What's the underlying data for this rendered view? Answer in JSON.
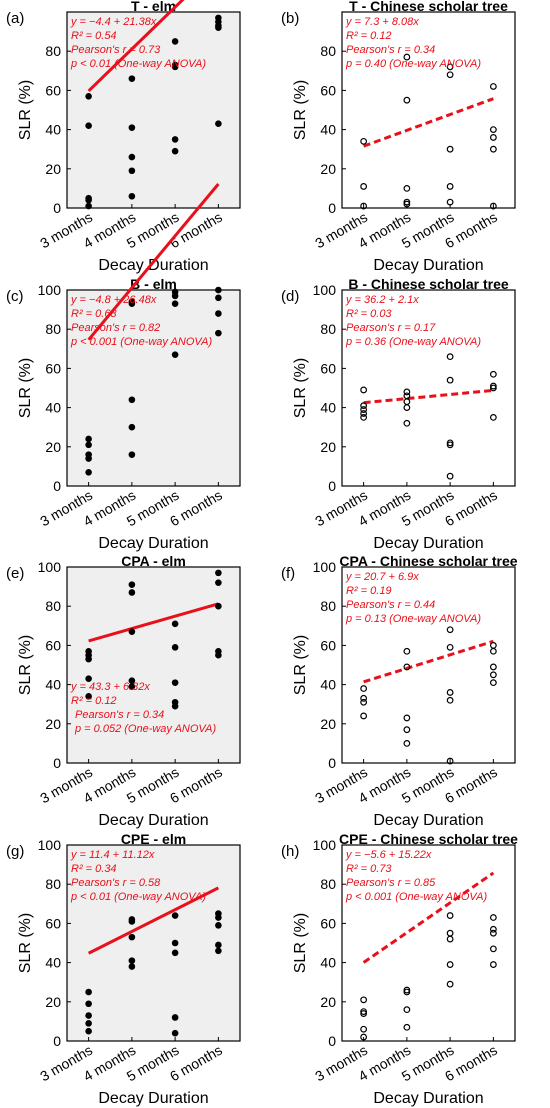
{
  "chart_data": [
    {
      "panel_label": "(a)",
      "title": "T - elm",
      "type": "scatter",
      "x_categories": [
        "3 months",
        "4 months",
        "5 months",
        "6 months"
      ],
      "xlabel": "Decay Duration",
      "ylabel": "SLR (%)",
      "ylim": [
        0,
        100
      ],
      "yticks": [
        0,
        20,
        40,
        60,
        80
      ],
      "background": "#efefef",
      "marker": "filled",
      "fit_style": "solid",
      "fit_color": "#e8101a",
      "points": [
        [
          3,
          57
        ],
        [
          3,
          42
        ],
        [
          3,
          5
        ],
        [
          3,
          4
        ],
        [
          3,
          1
        ],
        [
          4,
          66
        ],
        [
          4,
          41
        ],
        [
          4,
          26
        ],
        [
          4,
          19
        ],
        [
          4,
          6
        ],
        [
          5,
          85
        ],
        [
          5,
          73
        ],
        [
          5,
          72
        ],
        [
          5,
          35
        ],
        [
          5,
          29
        ],
        [
          6,
          97
        ],
        [
          6,
          95
        ],
        [
          6,
          93
        ],
        [
          6,
          92
        ],
        [
          6,
          43
        ]
      ],
      "fit": {
        "intercept": -4.4,
        "slope": 21.38
      },
      "annotation": [
        "y = −4.4 + 21.38x",
        "R² = 0.54",
        "Pearson's r = 0.73",
        "p < 0.01 (One-way ANOVA)"
      ],
      "annotation_position": "top-left"
    },
    {
      "panel_label": "(b)",
      "title": "T - Chinese scholar tree",
      "type": "scatter",
      "x_categories": [
        "3 months",
        "4 months",
        "5 months",
        "6 months"
      ],
      "xlabel": "Decay Duration",
      "ylabel": "SLR (%)",
      "ylim": [
        0,
        100
      ],
      "yticks": [
        0,
        20,
        40,
        60,
        80
      ],
      "background": "#ffffff",
      "marker": "open",
      "fit_style": "dashed",
      "fit_color": "#e8101a",
      "points": [
        [
          3,
          34
        ],
        [
          3,
          11
        ],
        [
          3,
          1
        ],
        [
          4,
          77
        ],
        [
          4,
          55
        ],
        [
          4,
          10
        ],
        [
          4,
          3
        ],
        [
          4,
          2
        ],
        [
          5,
          72
        ],
        [
          5,
          68
        ],
        [
          5,
          30
        ],
        [
          5,
          11
        ],
        [
          5,
          3
        ],
        [
          6,
          62
        ],
        [
          6,
          40
        ],
        [
          6,
          36
        ],
        [
          6,
          30
        ],
        [
          6,
          1
        ]
      ],
      "fit": {
        "intercept": 7.3,
        "slope": 8.08
      },
      "annotation": [
        "y = 7.3 + 8.08x",
        "R² = 0.12",
        "Pearson's r = 0.34",
        "p = 0.40 (One-way ANOVA)"
      ],
      "annotation_position": "top-left"
    },
    {
      "panel_label": "(c)",
      "title": "B - elm",
      "type": "scatter",
      "x_categories": [
        "3 months",
        "4 months",
        "5 months",
        "6 months"
      ],
      "xlabel": "Decay Duration",
      "ylabel": "SLR (%)",
      "ylim": [
        0,
        100
      ],
      "yticks": [
        0,
        20,
        40,
        60,
        80,
        100
      ],
      "background": "#efefef",
      "marker": "filled",
      "fit_style": "solid",
      "fit_color": "#e8101a",
      "points": [
        [
          3,
          24
        ],
        [
          3,
          21
        ],
        [
          3,
          16
        ],
        [
          3,
          14
        ],
        [
          3,
          7
        ],
        [
          4,
          94
        ],
        [
          4,
          93
        ],
        [
          4,
          44
        ],
        [
          4,
          30
        ],
        [
          4,
          16
        ],
        [
          5,
          99
        ],
        [
          5,
          97
        ],
        [
          5,
          93
        ],
        [
          5,
          67
        ],
        [
          6,
          100
        ],
        [
          6,
          96
        ],
        [
          6,
          88
        ],
        [
          6,
          78
        ]
      ],
      "fit": {
        "intercept": -4.8,
        "slope": 26.48
      },
      "annotation": [
        "y = −4.8 + 26.48x",
        "R² = 0.68",
        "Pearson's r = 0.82",
        "p < 0.001 (One-way ANOVA)"
      ],
      "annotation_position": "top-left"
    },
    {
      "panel_label": "(d)",
      "title": "B - Chinese scholar tree",
      "type": "scatter",
      "x_categories": [
        "3 months",
        "4 months",
        "5 months",
        "6 months"
      ],
      "xlabel": "Decay Duration",
      "ylabel": "SLR (%)",
      "ylim": [
        0,
        100
      ],
      "yticks": [
        0,
        20,
        40,
        60,
        80,
        100
      ],
      "background": "#ffffff",
      "marker": "open",
      "fit_style": "dashed",
      "fit_color": "#e8101a",
      "points": [
        [
          3,
          49
        ],
        [
          3,
          41
        ],
        [
          3,
          39
        ],
        [
          3,
          37
        ],
        [
          3,
          35
        ],
        [
          4,
          48
        ],
        [
          4,
          46
        ],
        [
          4,
          43
        ],
        [
          4,
          40
        ],
        [
          4,
          32
        ],
        [
          5,
          66
        ],
        [
          5,
          54
        ],
        [
          5,
          22
        ],
        [
          5,
          21
        ],
        [
          5,
          5
        ],
        [
          6,
          57
        ],
        [
          6,
          51
        ],
        [
          6,
          50
        ],
        [
          6,
          35
        ]
      ],
      "fit": {
        "intercept": 36.2,
        "slope": 2.1
      },
      "annotation": [
        "y = 36.2 + 2.1x",
        "R² = 0.03",
        "Pearson's r = 0.17",
        "p = 0.36 (One-way ANOVA)"
      ],
      "annotation_position": "top-left"
    },
    {
      "panel_label": "(e)",
      "title": "CPA - elm",
      "type": "scatter",
      "x_categories": [
        "3 months",
        "4 months",
        "5 months",
        "6 months"
      ],
      "xlabel": "Decay Duration",
      "ylabel": "SLR (%)",
      "ylim": [
        0,
        100
      ],
      "yticks": [
        0,
        20,
        40,
        60,
        80,
        100
      ],
      "background": "#efefef",
      "marker": "filled",
      "fit_style": "solid",
      "fit_color": "#e8101a",
      "points": [
        [
          3,
          57
        ],
        [
          3,
          55
        ],
        [
          3,
          53
        ],
        [
          3,
          43
        ],
        [
          3,
          34
        ],
        [
          4,
          91
        ],
        [
          4,
          87
        ],
        [
          4,
          67
        ],
        [
          4,
          42
        ],
        [
          4,
          39
        ],
        [
          5,
          71
        ],
        [
          5,
          59
        ],
        [
          5,
          41
        ],
        [
          5,
          31
        ],
        [
          5,
          29
        ],
        [
          6,
          97
        ],
        [
          6,
          92
        ],
        [
          6,
          80
        ],
        [
          6,
          57
        ],
        [
          6,
          55
        ]
      ],
      "fit": {
        "intercept": 43.3,
        "slope": 6.32
      },
      "annotation": [
        "y = 43.3 + 6.32x",
        "R² = 0.12",
        "Pearson's r = 0.34",
        "p = 0.052 (One-way ANOVA)"
      ],
      "annotation_position": "bottom-left"
    },
    {
      "panel_label": "(f)",
      "title": "CPA - Chinese scholar tree",
      "type": "scatter",
      "x_categories": [
        "3 months",
        "4 months",
        "5 months",
        "6 months"
      ],
      "xlabel": "Decay Duration",
      "ylabel": "SLR (%)",
      "ylim": [
        0,
        100
      ],
      "yticks": [
        0,
        20,
        40,
        60,
        80,
        100
      ],
      "background": "#ffffff",
      "marker": "open",
      "fit_style": "dashed",
      "fit_color": "#e8101a",
      "points": [
        [
          3,
          38
        ],
        [
          3,
          33
        ],
        [
          3,
          31
        ],
        [
          3,
          24
        ],
        [
          4,
          57
        ],
        [
          4,
          49
        ],
        [
          4,
          23
        ],
        [
          4,
          17
        ],
        [
          4,
          10
        ],
        [
          5,
          68
        ],
        [
          5,
          59
        ],
        [
          5,
          36
        ],
        [
          5,
          32
        ],
        [
          5,
          1
        ],
        [
          6,
          60
        ],
        [
          6,
          57
        ],
        [
          6,
          49
        ],
        [
          6,
          45
        ],
        [
          6,
          41
        ]
      ],
      "fit": {
        "intercept": 20.7,
        "slope": 6.9
      },
      "annotation": [
        "y = 20.7 + 6.9x",
        "R² = 0.19",
        "Pearson's r = 0.44",
        "p = 0.13 (One-way ANOVA)"
      ],
      "annotation_position": "top-left"
    },
    {
      "panel_label": "(g)",
      "title": "CPE - elm",
      "type": "scatter",
      "x_categories": [
        "3 months",
        "4 months",
        "5 months",
        "6 months"
      ],
      "xlabel": "Decay Duration",
      "ylabel": "SLR (%)",
      "ylim": [
        0,
        100
      ],
      "yticks": [
        0,
        20,
        40,
        60,
        80,
        100
      ],
      "background": "#efefef",
      "marker": "filled",
      "fit_style": "solid",
      "fit_color": "#e8101a",
      "points": [
        [
          3,
          25
        ],
        [
          3,
          19
        ],
        [
          3,
          13
        ],
        [
          3,
          9
        ],
        [
          3,
          5
        ],
        [
          4,
          62
        ],
        [
          4,
          61
        ],
        [
          4,
          53
        ],
        [
          4,
          41
        ],
        [
          4,
          38
        ],
        [
          5,
          64
        ],
        [
          5,
          50
        ],
        [
          5,
          45
        ],
        [
          5,
          12
        ],
        [
          5,
          4
        ],
        [
          6,
          65
        ],
        [
          6,
          63
        ],
        [
          6,
          59
        ],
        [
          6,
          49
        ],
        [
          6,
          46
        ]
      ],
      "fit": {
        "intercept": 11.4,
        "slope": 11.12
      },
      "annotation": [
        "y = 11.4 + 11.12x",
        "R² = 0.34",
        "Pearson's r = 0.58",
        "p < 0.01 (One-way ANOVA)"
      ],
      "annotation_position": "top-left"
    },
    {
      "panel_label": "(h)",
      "title": "CPE - Chinese scholar tree",
      "type": "scatter",
      "x_categories": [
        "3 months",
        "4 months",
        "5 months",
        "6 months"
      ],
      "xlabel": "Decay Duration",
      "ylabel": "SLR (%)",
      "ylim": [
        0,
        100
      ],
      "yticks": [
        0,
        20,
        40,
        60,
        80,
        100
      ],
      "background": "#ffffff",
      "marker": "open",
      "fit_style": "dashed",
      "fit_color": "#e8101a",
      "points": [
        [
          3,
          21
        ],
        [
          3,
          15
        ],
        [
          3,
          14
        ],
        [
          3,
          6
        ],
        [
          3,
          2
        ],
        [
          4,
          26
        ],
        [
          4,
          25
        ],
        [
          4,
          16
        ],
        [
          4,
          7
        ],
        [
          5,
          64
        ],
        [
          5,
          55
        ],
        [
          5,
          52
        ],
        [
          5,
          39
        ],
        [
          5,
          29
        ],
        [
          6,
          63
        ],
        [
          6,
          57
        ],
        [
          6,
          55
        ],
        [
          6,
          47
        ],
        [
          6,
          39
        ]
      ],
      "fit": {
        "intercept": -5.6,
        "slope": 15.22
      },
      "annotation": [
        "y = −5.6 + 15.22x",
        "R² = 0.73",
        "Pearson's r = 0.85",
        "p < 0.001 (One-way ANOVA)"
      ],
      "annotation_position": "top-left"
    }
  ]
}
